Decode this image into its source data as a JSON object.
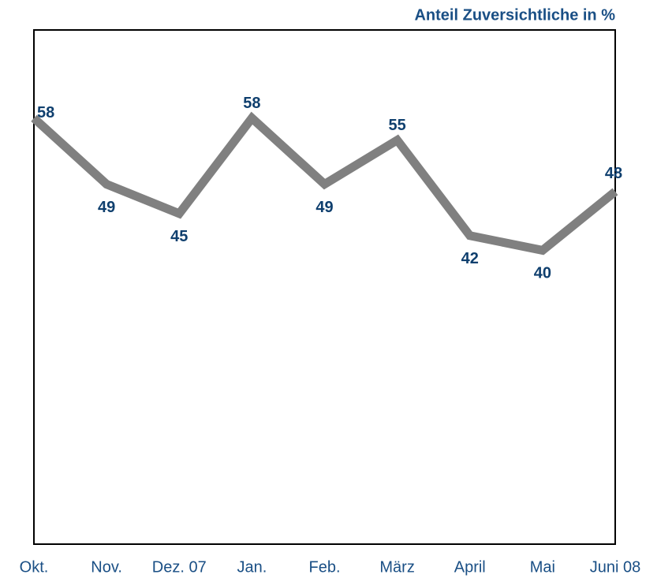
{
  "chart_data": {
    "type": "line",
    "title": "Anteil Zuversichtliche in %",
    "categories": [
      "Okt.",
      "Nov.",
      "Dez. 07",
      "Jan.",
      "Feb.",
      "März",
      "April",
      "Mai",
      "Juni 08"
    ],
    "series": [
      {
        "color": "#808080",
        "values": [
          58,
          49,
          45,
          58,
          49,
          55,
          42,
          40,
          48
        ]
      }
    ],
    "ylim": [
      0,
      70
    ],
    "label_color": "#0f3f6e"
  }
}
